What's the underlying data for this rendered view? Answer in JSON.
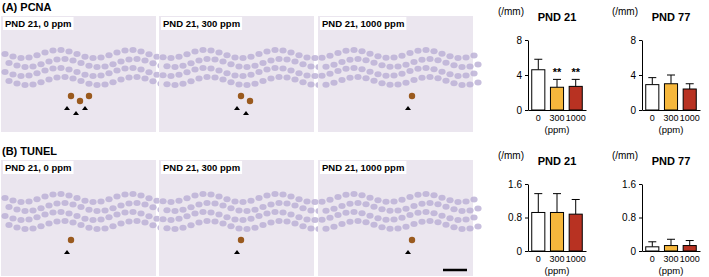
{
  "panels": [
    {
      "title": "(A) PCNA",
      "images": [
        "PND 21, 0 ppm",
        "PND 21, 300 ppm",
        "PND 21, 1000 ppm"
      ]
    },
    {
      "title": "(B) TUNEL",
      "images": [
        "PND 21, 0 ppm",
        "PND 21, 300 ppm",
        "PND 21, 1000 ppm"
      ]
    }
  ],
  "chart_data": [
    {
      "type": "bar",
      "title": "PND 21",
      "y_label": "(/mm)",
      "x_label": "(ppm)",
      "categories": [
        "0",
        "300",
        "1000"
      ],
      "values": [
        4.6,
        2.6,
        2.7
      ],
      "errors": [
        1.2,
        0.9,
        0.8
      ],
      "colors": [
        "#ffffff",
        "#f6b73c",
        "#b83222"
      ],
      "ylim": [
        0,
        8
      ],
      "yticks": [
        0,
        4,
        8
      ],
      "annotations": [
        {
          "text": "**",
          "category": "300"
        },
        {
          "text": "**",
          "category": "1000"
        }
      ]
    },
    {
      "type": "bar",
      "title": "PND 77",
      "y_label": "(/mm)",
      "x_label": "(ppm)",
      "categories": [
        "0",
        "300",
        "1000"
      ],
      "values": [
        2.9,
        3.0,
        2.4
      ],
      "errors": [
        0.8,
        1.0,
        0.6
      ],
      "colors": [
        "#ffffff",
        "#f6b73c",
        "#b83222"
      ],
      "ylim": [
        0,
        8
      ],
      "yticks": [
        0,
        4,
        8
      ]
    },
    {
      "type": "bar",
      "title": "PND 21",
      "y_label": "(/mm)",
      "x_label": "(ppm)",
      "categories": [
        "0",
        "300",
        "1000"
      ],
      "values": [
        0.92,
        0.92,
        0.88
      ],
      "errors": [
        0.45,
        0.45,
        0.35
      ],
      "colors": [
        "#ffffff",
        "#f6b73c",
        "#b83222"
      ],
      "ylim": [
        0,
        1.6
      ],
      "yticks": [
        0,
        0.8,
        1.6
      ]
    },
    {
      "type": "bar",
      "title": "PND 77",
      "y_label": "(/mm)",
      "x_label": "(ppm)",
      "categories": [
        "0",
        "300",
        "1000"
      ],
      "values": [
        0.1,
        0.13,
        0.13
      ],
      "errors": [
        0.12,
        0.15,
        0.12
      ],
      "colors": [
        "#ffffff",
        "#f6b73c",
        "#b83222"
      ],
      "ylim": [
        0,
        1.6
      ],
      "yticks": [
        0,
        0.8,
        1.6
      ]
    }
  ]
}
